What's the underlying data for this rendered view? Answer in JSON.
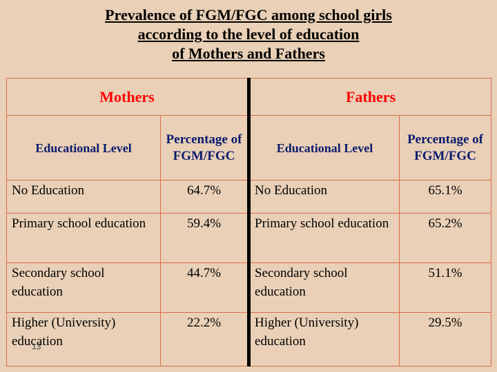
{
  "title": {
    "line1": "Prevalence of FGM/FGC among school girls ",
    "line2": "according to the level of education ",
    "line3": "of Mothers and Fathers"
  },
  "table": {
    "groups": {
      "mothers": "Mothers",
      "fathers": "Fathers"
    },
    "headers": {
      "level": "Educational Level",
      "percentage": "Percentage of FGM/FGC"
    },
    "rows": [
      {
        "mother_level": "No Education",
        "mother_pct": "64.7%",
        "father_level": "No Education",
        "father_pct": "65.1%"
      },
      {
        "mother_level": "Primary school education",
        "mother_pct": "59.4%",
        "father_level": "Primary school education",
        "father_pct": "65.2%"
      },
      {
        "mother_level": "Secondary school education",
        "mother_pct": "44.7%",
        "father_level": "Secondary school education",
        "father_pct": "51.1%"
      },
      {
        "mother_level": "Higher (University) education",
        "mother_pct": "22.2%",
        "father_level": "Higher (University) education",
        "father_pct": "29.5%"
      }
    ]
  },
  "slide_number": "13",
  "colors": {
    "background": "#e9d0b6",
    "group_header": "#ff0000",
    "column_header": "#0a1a6e",
    "cell_border": "#d96b4d"
  }
}
